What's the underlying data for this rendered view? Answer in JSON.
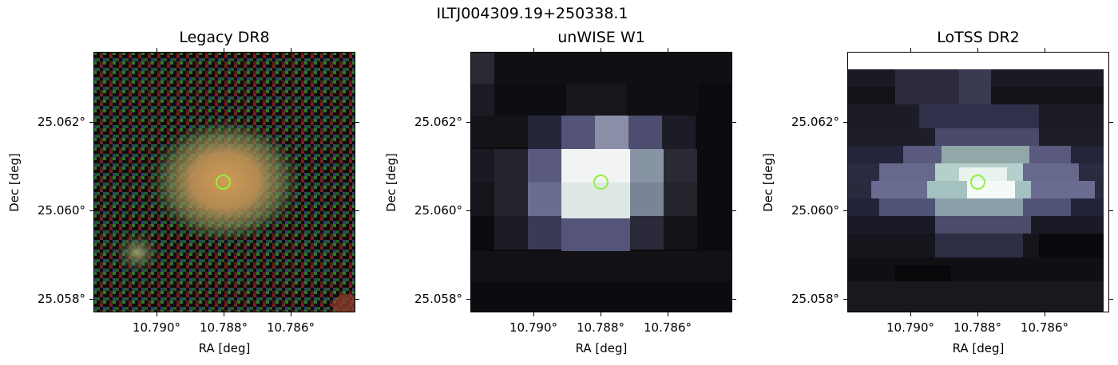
{
  "figure": {
    "title": "ILTJ004309.19+250338.1"
  },
  "panels": [
    {
      "title": "Legacy DR8",
      "xlabel": "RA [deg]",
      "ylabel": "Dec [deg]",
      "xticks": [
        "10.790°",
        "10.788°",
        "10.786°"
      ],
      "yticks": [
        "25.062°",
        "25.060°",
        "25.058°"
      ],
      "marker_color": "#8ef23a"
    },
    {
      "title": "unWISE W1",
      "xlabel": "RA [deg]",
      "ylabel": "Dec [deg]",
      "xticks": [
        "10.790°",
        "10.788°",
        "10.786°"
      ],
      "yticks": [
        "25.062°",
        "25.060°",
        "25.058°"
      ],
      "marker_color": "#8ef23a"
    },
    {
      "title": "LoTSS DR2",
      "xlabel": "RA [deg]",
      "ylabel": "Dec [deg]",
      "xticks": [
        "10.790°",
        "10.788°",
        "10.786°"
      ],
      "yticks": [
        "25.062°",
        "25.060°",
        "25.058°"
      ],
      "marker_color": "#8ef23a"
    }
  ]
}
